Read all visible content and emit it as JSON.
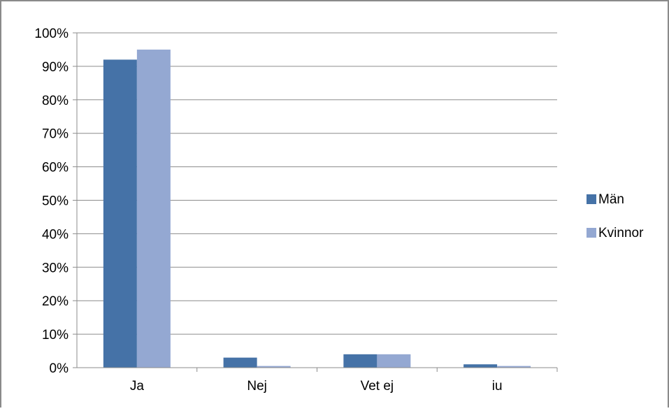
{
  "chart_data": {
    "type": "bar",
    "categories": [
      "Ja",
      "Nej",
      "Vet ej",
      "iu"
    ],
    "series": [
      {
        "name": "Män",
        "values": [
          92,
          3,
          4,
          1
        ],
        "color": "#4572A7"
      },
      {
        "name": "Kvinnor",
        "values": [
          95,
          0.5,
          4,
          0.5
        ],
        "color": "#94A8D2"
      }
    ],
    "y_tick_labels": [
      "0%",
      "10%",
      "20%",
      "30%",
      "40%",
      "50%",
      "60%",
      "70%",
      "80%",
      "90%",
      "100%"
    ],
    "ylim": [
      0,
      100
    ],
    "y_unit": "%",
    "grid": true,
    "gridline_color": "#8c8c8c",
    "legend_position": "right"
  }
}
